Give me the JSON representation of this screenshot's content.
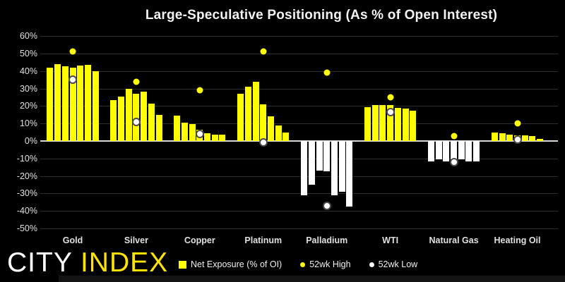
{
  "chart_data": {
    "type": "bar",
    "title": "Large-Speculative Positioning (As % of Open Interest)",
    "categories": [
      "Gold",
      "Silver",
      "Copper",
      "Platinum",
      "Palladium",
      "WTI",
      "Natural Gas",
      "Heating Oil"
    ],
    "series": [
      {
        "name": "Net Exposure (% of OI)",
        "type": "bar-group",
        "values_by_category": [
          [
            42,
            44,
            42.5,
            42,
            43,
            43.5,
            40
          ],
          [
            23.5,
            25.5,
            30,
            27,
            28,
            21.5,
            15
          ],
          [
            14.5,
            10.5,
            9.5,
            6.5,
            4.5,
            3.5,
            3.5
          ],
          [
            27,
            31,
            34,
            21,
            14,
            9,
            5
          ],
          [
            -31,
            -25,
            -17,
            -17.5,
            -31,
            -29,
            -37.5
          ],
          [
            19.5,
            20.5,
            20.5,
            20.5,
            19,
            18.5,
            17.5
          ],
          [
            -11.5,
            -10.5,
            -11.5,
            -10.5,
            -10.5,
            -11.5,
            -11.5
          ],
          [
            4.7,
            4.3,
            3.7,
            3.3,
            3.3,
            2.7,
            1.3
          ]
        ]
      },
      {
        "name": "52wk High",
        "type": "point",
        "values": [
          51,
          34,
          29,
          51,
          39,
          25,
          3,
          10
        ]
      },
      {
        "name": "52wk Low",
        "type": "point",
        "values": [
          35,
          11,
          4,
          -1,
          -37,
          16.5,
          -12,
          1
        ]
      }
    ],
    "y_tick_labels": [
      "60%",
      "50%",
      "40%",
      "30%",
      "20%",
      "10%",
      "0%",
      "-10%",
      "-20%",
      "-30%",
      "-40%",
      "-50%"
    ],
    "ylim": [
      -50,
      65
    ],
    "grid": true,
    "legend_position": "bottom"
  },
  "colors": {
    "background": "#000000",
    "bar_positive": "#ffff00",
    "bar_negative": "#ffffff",
    "high_dot": "#ffff00",
    "low_dot": "#ffffff",
    "grid": "#2e2e2e",
    "zero_line": "#d9d9d9",
    "logo_accent": "#ffe400"
  },
  "logo": {
    "text_primary": "CITY ",
    "text_secondary": "INDEX"
  }
}
